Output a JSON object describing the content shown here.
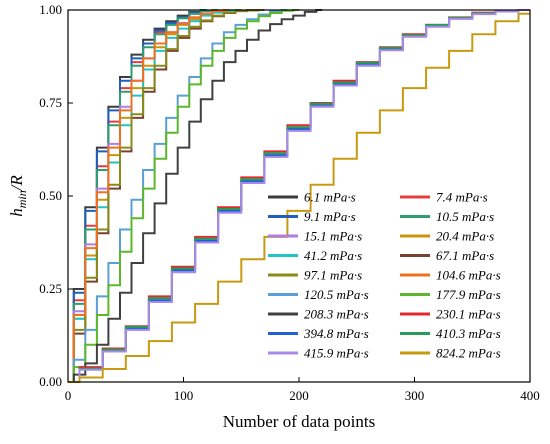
{
  "chart_data": {
    "type": "line",
    "xlabel": "Number of data points",
    "ylabel_main": "h",
    "ylabel_sub": "min",
    "ylabel_tail": "/R",
    "xlim": [
      0,
      400
    ],
    "ylim": [
      0,
      1.0
    ],
    "x_ticks": [
      "0",
      "100",
      "200",
      "300",
      "400"
    ],
    "y_ticks": [
      "0.00",
      "0.25",
      "0.50",
      "0.75",
      "1.00"
    ],
    "grid": false,
    "legend_position": "bottom-right",
    "legend_columns": 2,
    "series": [
      {
        "name": "6.1 mPa·s",
        "color": "#3c3c3c",
        "x": [
          0,
          10,
          20,
          30,
          40,
          50,
          60,
          70,
          80,
          90,
          100,
          110,
          120
        ],
        "y": [
          0.0,
          0.25,
          0.47,
          0.63,
          0.74,
          0.82,
          0.88,
          0.92,
          0.95,
          0.97,
          0.985,
          0.995,
          1.0
        ]
      },
      {
        "name": "7.4 mPa·s",
        "color": "#e83c3c",
        "x": [
          0,
          10,
          20,
          30,
          40,
          50,
          60,
          70,
          80,
          90,
          100,
          110,
          120,
          130
        ],
        "y": [
          0.0,
          0.22,
          0.42,
          0.58,
          0.7,
          0.79,
          0.86,
          0.91,
          0.94,
          0.965,
          0.98,
          0.99,
          0.997,
          1.0
        ]
      },
      {
        "name": "9.1 mPa·s",
        "color": "#1f5fbf",
        "x": [
          0,
          10,
          20,
          30,
          40,
          50,
          60,
          70,
          80,
          90,
          100,
          110,
          120
        ],
        "y": [
          0.0,
          0.24,
          0.46,
          0.62,
          0.73,
          0.81,
          0.87,
          0.91,
          0.945,
          0.965,
          0.98,
          0.993,
          1.0
        ]
      },
      {
        "name": "10.5 mPa·s",
        "color": "#2e9e6e",
        "x": [
          0,
          10,
          20,
          30,
          40,
          50,
          60,
          70,
          80,
          90,
          100,
          110,
          120,
          130
        ],
        "y": [
          0.0,
          0.21,
          0.41,
          0.57,
          0.69,
          0.78,
          0.85,
          0.9,
          0.935,
          0.96,
          0.978,
          0.99,
          0.997,
          1.0
        ]
      },
      {
        "name": "15.1 mPa·s",
        "color": "#b07ee0",
        "x": [
          0,
          10,
          20,
          30,
          40,
          50,
          60,
          70,
          80,
          90,
          100,
          110,
          120,
          130,
          140
        ],
        "y": [
          0.0,
          0.19,
          0.37,
          0.52,
          0.64,
          0.74,
          0.81,
          0.87,
          0.91,
          0.94,
          0.965,
          0.98,
          0.99,
          0.997,
          1.0
        ]
      },
      {
        "name": "20.4 mPa·s",
        "color": "#c8960a",
        "x": [
          0,
          10,
          20,
          30,
          40,
          50,
          60,
          70,
          80,
          90,
          100,
          110,
          120,
          130,
          140,
          150
        ],
        "y": [
          0.0,
          0.17,
          0.34,
          0.49,
          0.61,
          0.71,
          0.79,
          0.85,
          0.9,
          0.935,
          0.96,
          0.975,
          0.988,
          0.995,
          0.999,
          1.0
        ]
      },
      {
        "name": "41.2 mPa·s",
        "color": "#20c4c4",
        "x": [
          0,
          10,
          20,
          30,
          40,
          50,
          60,
          70,
          80,
          90,
          100,
          110,
          120,
          130,
          140,
          150
        ],
        "y": [
          0.0,
          0.17,
          0.33,
          0.47,
          0.59,
          0.69,
          0.77,
          0.84,
          0.89,
          0.925,
          0.95,
          0.97,
          0.985,
          0.993,
          0.998,
          1.0
        ]
      },
      {
        "name": "67.1 mPa·s",
        "color": "#7a4030",
        "x": [
          0,
          10,
          20,
          30,
          40,
          50,
          60,
          70,
          80,
          90,
          100,
          110,
          120,
          130,
          140,
          150,
          160,
          170
        ],
        "y": [
          0.0,
          0.13,
          0.27,
          0.4,
          0.52,
          0.62,
          0.71,
          0.78,
          0.84,
          0.89,
          0.925,
          0.95,
          0.97,
          0.983,
          0.992,
          0.997,
          0.999,
          1.0
        ]
      },
      {
        "name": "97.1 mPa·s",
        "color": "#8a8a1a",
        "x": [
          0,
          10,
          20,
          30,
          40,
          50,
          60,
          70,
          80,
          90,
          100,
          110,
          120,
          130,
          140,
          150,
          160,
          170
        ],
        "y": [
          0.0,
          0.14,
          0.28,
          0.41,
          0.53,
          0.63,
          0.72,
          0.79,
          0.85,
          0.895,
          0.93,
          0.955,
          0.972,
          0.985,
          0.993,
          0.998,
          1.0,
          1.0
        ]
      },
      {
        "name": "104.6 mPa·s",
        "color": "#f07020",
        "x": [
          0,
          10,
          20,
          30,
          40,
          50,
          60,
          70,
          80,
          90,
          100,
          110,
          120,
          130,
          140
        ],
        "y": [
          0.0,
          0.18,
          0.36,
          0.51,
          0.63,
          0.73,
          0.81,
          0.87,
          0.91,
          0.94,
          0.963,
          0.98,
          0.99,
          0.997,
          1.0
        ]
      },
      {
        "name": "120.5 mPa·s",
        "color": "#5a9fd6",
        "x": [
          0,
          10,
          20,
          30,
          40,
          50,
          60,
          70,
          80,
          90,
          100,
          110,
          120,
          130,
          140,
          150,
          160,
          170,
          180,
          190
        ],
        "y": [
          0.0,
          0.06,
          0.14,
          0.23,
          0.32,
          0.41,
          0.49,
          0.57,
          0.64,
          0.71,
          0.77,
          0.82,
          0.87,
          0.91,
          0.94,
          0.96,
          0.975,
          0.988,
          0.996,
          1.0
        ]
      },
      {
        "name": "177.9 mPa·s",
        "color": "#5cb82a",
        "x": [
          0,
          10,
          20,
          30,
          40,
          50,
          60,
          70,
          80,
          90,
          100,
          110,
          120,
          130,
          140,
          150,
          160,
          170,
          180,
          190,
          200
        ],
        "y": [
          0.0,
          0.04,
          0.1,
          0.18,
          0.26,
          0.35,
          0.44,
          0.52,
          0.6,
          0.67,
          0.74,
          0.8,
          0.85,
          0.89,
          0.925,
          0.95,
          0.97,
          0.983,
          0.992,
          0.998,
          1.0
        ]
      },
      {
        "name": "208.3 mPa·s",
        "color": "#404040",
        "x": [
          0,
          10,
          20,
          30,
          40,
          50,
          60,
          70,
          80,
          90,
          100,
          110,
          120,
          130,
          140,
          150,
          160,
          170,
          180,
          190,
          200,
          210,
          220
        ],
        "y": [
          0.0,
          0.02,
          0.05,
          0.1,
          0.17,
          0.24,
          0.32,
          0.4,
          0.48,
          0.56,
          0.63,
          0.7,
          0.76,
          0.81,
          0.86,
          0.89,
          0.92,
          0.945,
          0.962,
          0.975,
          0.985,
          0.995,
          1.0
        ]
      },
      {
        "name": "230.1 mPa·s",
        "color": "#e02a2a",
        "x": [
          0,
          20,
          40,
          60,
          80,
          100,
          120,
          140,
          160,
          180,
          200,
          220,
          240,
          260,
          280,
          300,
          320,
          340,
          360,
          380,
          400
        ],
        "y": [
          0.0,
          0.04,
          0.09,
          0.15,
          0.23,
          0.31,
          0.39,
          0.47,
          0.55,
          0.62,
          0.69,
          0.75,
          0.81,
          0.86,
          0.9,
          0.935,
          0.96,
          0.98,
          0.993,
          0.998,
          1.0
        ]
      },
      {
        "name": "394.8 mPa·s",
        "color": "#2060d0",
        "x": [
          0,
          20,
          40,
          60,
          80,
          100,
          120,
          140,
          160,
          180,
          200,
          220,
          240,
          260,
          280,
          300,
          320,
          340,
          360,
          380,
          400
        ],
        "y": [
          0.0,
          0.035,
          0.085,
          0.145,
          0.22,
          0.3,
          0.38,
          0.46,
          0.54,
          0.61,
          0.68,
          0.745,
          0.8,
          0.855,
          0.895,
          0.93,
          0.958,
          0.978,
          0.99,
          0.997,
          1.0
        ]
      },
      {
        "name": "410.3 mPa·s",
        "color": "#2a9a5a",
        "x": [
          0,
          20,
          40,
          60,
          80,
          100,
          120,
          140,
          160,
          180,
          200,
          220,
          240,
          260,
          280,
          300,
          320,
          340,
          360,
          380,
          400
        ],
        "y": [
          0.0,
          0.036,
          0.087,
          0.148,
          0.225,
          0.305,
          0.385,
          0.465,
          0.545,
          0.615,
          0.685,
          0.748,
          0.805,
          0.858,
          0.898,
          0.932,
          0.96,
          0.979,
          0.991,
          0.997,
          1.0
        ]
      },
      {
        "name": "415.9 mPa·s",
        "color": "#a888e8",
        "x": [
          0,
          20,
          40,
          60,
          80,
          100,
          120,
          140,
          160,
          180,
          200,
          220,
          240,
          260,
          280,
          300,
          320,
          340,
          360,
          380,
          400
        ],
        "y": [
          0.0,
          0.033,
          0.082,
          0.14,
          0.215,
          0.295,
          0.375,
          0.455,
          0.535,
          0.605,
          0.675,
          0.74,
          0.797,
          0.85,
          0.892,
          0.928,
          0.955,
          0.976,
          0.989,
          0.996,
          1.0
        ]
      },
      {
        "name": "824.2 mPa·s",
        "color": "#c89a10",
        "x": [
          0,
          20,
          40,
          60,
          80,
          100,
          120,
          140,
          160,
          180,
          200,
          220,
          240,
          260,
          280,
          300,
          320,
          340,
          360,
          380,
          400
        ],
        "y": [
          0.0,
          0.012,
          0.035,
          0.07,
          0.11,
          0.16,
          0.21,
          0.27,
          0.33,
          0.39,
          0.46,
          0.53,
          0.6,
          0.67,
          0.73,
          0.79,
          0.845,
          0.89,
          0.935,
          0.97,
          0.99
        ]
      }
    ]
  }
}
